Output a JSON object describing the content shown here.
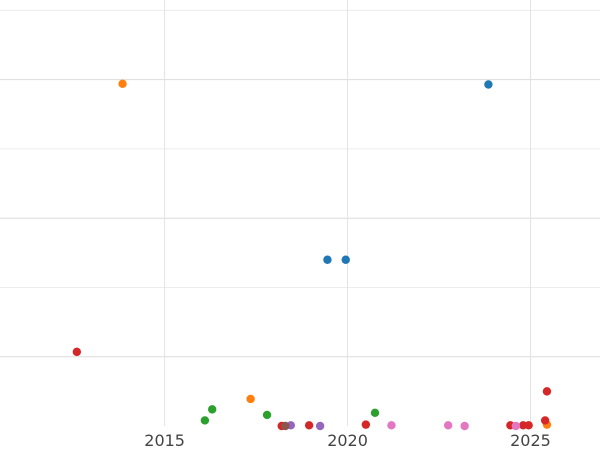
{
  "chart_data": {
    "type": "scatter",
    "title": "",
    "xlabel": "",
    "ylabel": "",
    "xlim": [
      2010.5,
      2026.9
    ],
    "ylim": [
      0,
      6.15
    ],
    "x_ticks": [
      2015,
      2020,
      2025
    ],
    "x_tick_labels": [
      "2015",
      "2020",
      "2025"
    ],
    "y_gridlines": [
      1,
      2,
      3,
      4,
      5,
      6
    ],
    "grid": true,
    "legend": "none",
    "series": [
      {
        "color": "#1f77b4",
        "points": [
          {
            "x": 2019.45,
            "y": 2.4
          },
          {
            "x": 2019.95,
            "y": 2.4
          },
          {
            "x": 2023.85,
            "y": 4.93
          }
        ]
      },
      {
        "color": "#ff7f0e",
        "points": [
          {
            "x": 2013.85,
            "y": 4.94
          },
          {
            "x": 2017.35,
            "y": 0.39
          },
          {
            "x": 2025.45,
            "y": 0.02
          }
        ]
      },
      {
        "color": "#2ca02c",
        "points": [
          {
            "x": 2016.1,
            "y": 0.08
          },
          {
            "x": 2016.3,
            "y": 0.24
          },
          {
            "x": 2017.8,
            "y": 0.16
          },
          {
            "x": 2020.75,
            "y": 0.19
          }
        ]
      },
      {
        "color": "#d62728",
        "points": [
          {
            "x": 2012.6,
            "y": 1.07
          },
          {
            "x": 2018.2,
            "y": 0.0
          },
          {
            "x": 2018.95,
            "y": 0.01
          },
          {
            "x": 2020.5,
            "y": 0.02
          },
          {
            "x": 2024.45,
            "y": 0.01
          },
          {
            "x": 2024.8,
            "y": 0.01
          },
          {
            "x": 2024.95,
            "y": 0.01
          },
          {
            "x": 2025.4,
            "y": 0.08
          },
          {
            "x": 2025.45,
            "y": 0.5
          }
        ]
      },
      {
        "color": "#9467bd",
        "points": [
          {
            "x": 2018.45,
            "y": 0.01
          },
          {
            "x": 2019.25,
            "y": 0.0
          }
        ]
      },
      {
        "color": "#8c564b",
        "points": [
          {
            "x": 2018.3,
            "y": 0.0
          }
        ]
      },
      {
        "color": "#e377c2",
        "points": [
          {
            "x": 2021.2,
            "y": 0.01
          },
          {
            "x": 2022.75,
            "y": 0.01
          },
          {
            "x": 2023.2,
            "y": 0.0
          },
          {
            "x": 2024.6,
            "y": 0.0
          }
        ]
      }
    ]
  }
}
